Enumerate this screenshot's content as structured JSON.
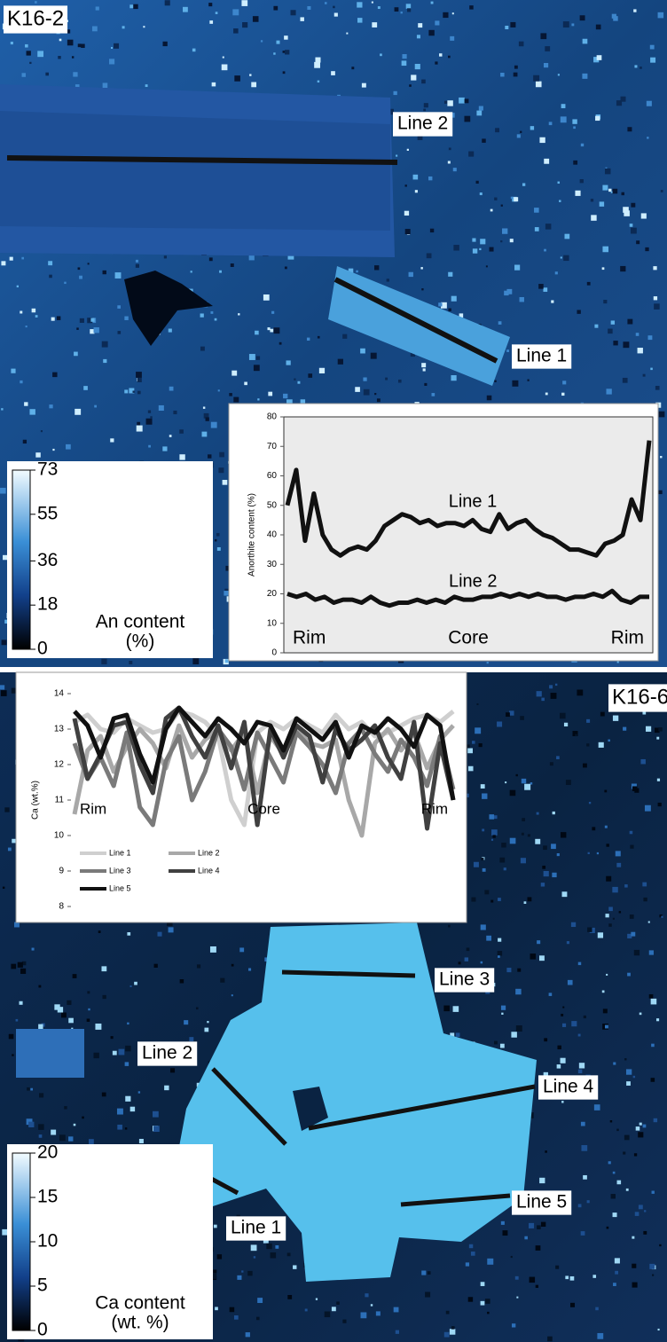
{
  "panels": [
    {
      "sample": "K16-2",
      "line_labels": [
        "Line 2",
        "Line 1"
      ],
      "colorbar": {
        "ticks": [
          0,
          18,
          36,
          55,
          73
        ],
        "label": [
          "An content",
          "(%)"
        ]
      }
    },
    {
      "sample": "K16-6",
      "line_labels": [
        "Line 3",
        "Line 2",
        "Line 4",
        "Line 1",
        "Line 5"
      ],
      "colorbar": {
        "ticks": [
          0,
          5,
          10,
          15,
          20
        ],
        "label": [
          "Ca content",
          "(wt. %)"
        ]
      }
    }
  ],
  "chart_data": [
    {
      "type": "line",
      "ylabel": "Anorthite content (%)",
      "ylim": [
        0,
        80
      ],
      "yticks": [
        0,
        10,
        20,
        30,
        40,
        50,
        60,
        70,
        80
      ],
      "x_labels": [
        "Rim",
        "Core",
        "Rim"
      ],
      "series": [
        {
          "name": "Line 1",
          "color": "#111111",
          "values": [
            50,
            62,
            38,
            54,
            40,
            35,
            33,
            35,
            36,
            35,
            38,
            43,
            45,
            47,
            46,
            44,
            45,
            43,
            44,
            44,
            43,
            45,
            42,
            41,
            47,
            42,
            44,
            45,
            42,
            40,
            39,
            37,
            35,
            35,
            34,
            33,
            37,
            38,
            40,
            52,
            45,
            72
          ]
        },
        {
          "name": "Line 2",
          "color": "#111111",
          "values": [
            20,
            19,
            20,
            18,
            19,
            17,
            18,
            18,
            17,
            19,
            17,
            16,
            17,
            17,
            18,
            17,
            18,
            17,
            19,
            18,
            18,
            19,
            19,
            20,
            19,
            20,
            19,
            20,
            19,
            19,
            18,
            19,
            19,
            20,
            19,
            21,
            18,
            17,
            19,
            19
          ]
        }
      ]
    },
    {
      "type": "line",
      "ylabel": "Ca (wt.%)",
      "ylim": [
        8,
        14
      ],
      "yticks": [
        8,
        9,
        10,
        11,
        12,
        13,
        14
      ],
      "x_labels": [
        "Rim",
        "Core",
        "Rim"
      ],
      "series": [
        {
          "name": "Line 1",
          "color": "#cfcfcf",
          "values": [
            13.2,
            13.4,
            13.0,
            12.9,
            13.3,
            13.1,
            12.9,
            13.0,
            13.5,
            13.4,
            13.2,
            12.8,
            11.0,
            10.3,
            12.9,
            13.2,
            13.0,
            13.3,
            13.1,
            12.9,
            13.4,
            13.0,
            13.2,
            12.8,
            12.9,
            13.1,
            13.3,
            13.4,
            13.2,
            13.5
          ]
        },
        {
          "name": "Line 2",
          "color": "#a8a8a8",
          "values": [
            10.6,
            12.4,
            12.8,
            11.8,
            12.5,
            13.0,
            12.6,
            11.9,
            13.1,
            12.2,
            12.7,
            13.0,
            12.4,
            12.9,
            11.2,
            12.8,
            12.3,
            13.0,
            12.6,
            12.5,
            12.7,
            11.0,
            10.0,
            12.6,
            13.0,
            12.4,
            12.9,
            11.9,
            12.7,
            13.1
          ]
        },
        {
          "name": "Line 3",
          "color": "#7a7a7a",
          "values": [
            12.6,
            11.6,
            12.2,
            11.4,
            12.9,
            10.8,
            10.3,
            12.1,
            12.8,
            11.0,
            11.8,
            13.0,
            12.5,
            11.3,
            12.9,
            12.2,
            11.5,
            12.9,
            12.5,
            12.0,
            11.2,
            12.6,
            13.0,
            12.3,
            11.8,
            12.7,
            12.2,
            11.4,
            12.8,
            11.3
          ]
        },
        {
          "name": "Line 4",
          "color": "#404040",
          "values": [
            13.3,
            11.6,
            12.3,
            13.1,
            13.2,
            12.0,
            11.2,
            13.3,
            13.6,
            12.8,
            12.2,
            13.1,
            11.9,
            13.2,
            10.3,
            13.0,
            12.2,
            13.1,
            12.8,
            11.5,
            13.0,
            12.4,
            12.7,
            13.1,
            12.2,
            11.6,
            13.2,
            10.2,
            12.6,
            11.0
          ]
        },
        {
          "name": "Line 5",
          "color": "#111111",
          "values": [
            13.5,
            13.1,
            12.2,
            13.3,
            13.4,
            12.3,
            11.5,
            13.0,
            13.6,
            13.2,
            12.8,
            13.3,
            13.0,
            12.6,
            13.2,
            13.1,
            12.4,
            13.3,
            13.0,
            12.7,
            13.2,
            12.2,
            13.1,
            12.9,
            13.3,
            13.0,
            12.5,
            13.4,
            13.1,
            11.0
          ]
        }
      ]
    }
  ]
}
